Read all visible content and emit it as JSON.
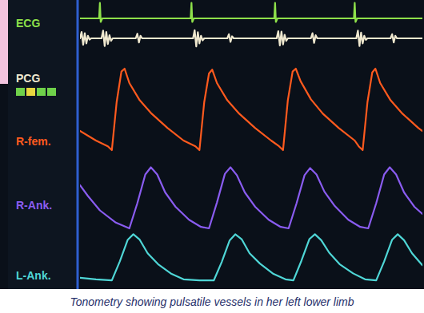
{
  "chart_data": [
    {
      "type": "line",
      "title": "ECG",
      "color": "#8ee04a",
      "tick_labels": false,
      "xlim": [
        0,
        430
      ],
      "ylim": [
        0,
        100
      ],
      "x": [
        0,
        24,
        25,
        26,
        28,
        139,
        140,
        141,
        143,
        244,
        245,
        246,
        248,
        344,
        345,
        346,
        348,
        430
      ],
      "values": [
        30,
        30,
        95,
        15,
        30,
        30,
        95,
        15,
        30,
        30,
        95,
        15,
        30,
        30,
        95,
        15,
        30,
        30
      ]
    },
    {
      "type": "line",
      "title": "PCG",
      "color": "#efe8cf",
      "tick_labels": false,
      "xlim": [
        0,
        430
      ],
      "ylim": [
        0,
        100
      ],
      "x": [
        0,
        2,
        4,
        6,
        8,
        10,
        12,
        14,
        27,
        29,
        31,
        33,
        35,
        37,
        39,
        41,
        70,
        72,
        74,
        76,
        78,
        142,
        144,
        146,
        148,
        150,
        152,
        154,
        156,
        185,
        187,
        189,
        191,
        193,
        247,
        249,
        251,
        253,
        255,
        257,
        259,
        261,
        290,
        292,
        294,
        296,
        298,
        347,
        349,
        351,
        353,
        355,
        357,
        359,
        361,
        390,
        392,
        394,
        396,
        398,
        430
      ],
      "values": [
        50,
        75,
        25,
        70,
        30,
        60,
        45,
        50,
        50,
        80,
        20,
        75,
        28,
        62,
        40,
        50,
        50,
        68,
        34,
        60,
        50,
        50,
        82,
        18,
        74,
        30,
        60,
        42,
        50,
        50,
        66,
        36,
        58,
        50,
        50,
        78,
        22,
        76,
        26,
        64,
        40,
        50,
        50,
        70,
        32,
        62,
        50,
        50,
        80,
        20,
        72,
        30,
        60,
        44,
        50,
        50,
        66,
        34,
        60,
        50,
        50
      ]
    },
    {
      "type": "line",
      "title": "R-fem.",
      "color": "#ff5a1e",
      "tick_labels": false,
      "xlim": [
        0,
        430
      ],
      "ylim": [
        0,
        100
      ],
      "x": [
        0,
        20,
        35,
        40,
        46,
        52,
        56,
        62,
        75,
        90,
        110,
        130,
        145,
        150,
        156,
        162,
        166,
        172,
        185,
        200,
        220,
        240,
        250,
        255,
        261,
        267,
        271,
        277,
        290,
        305,
        325,
        345,
        350,
        355,
        361,
        367,
        371,
        377,
        390,
        405,
        425,
        430
      ],
      "values": [
        30,
        20,
        14,
        10,
        60,
        92,
        95,
        80,
        62,
        48,
        33,
        20,
        14,
        10,
        60,
        90,
        94,
        80,
        62,
        48,
        33,
        20,
        14,
        10,
        62,
        92,
        95,
        82,
        63,
        48,
        33,
        20,
        14,
        10,
        60,
        91,
        95,
        80,
        62,
        48,
        33,
        30
      ]
    },
    {
      "type": "line",
      "title": "R-Ank.",
      "color": "#8a5cf0",
      "tick_labels": false,
      "xlim": [
        0,
        430
      ],
      "ylim": [
        0,
        100
      ],
      "x": [
        0,
        10,
        25,
        45,
        62,
        72,
        82,
        89,
        97,
        107,
        120,
        137,
        152,
        162,
        172,
        182,
        189,
        197,
        207,
        220,
        237,
        252,
        262,
        272,
        282,
        289,
        297,
        307,
        320,
        337,
        352,
        362,
        372,
        382,
        389,
        397,
        407,
        420,
        430
      ],
      "values": [
        70,
        55,
        35,
        18,
        10,
        45,
        85,
        95,
        85,
        60,
        40,
        22,
        12,
        10,
        46,
        86,
        95,
        84,
        60,
        40,
        22,
        12,
        10,
        45,
        84,
        94,
        85,
        61,
        41,
        22,
        12,
        10,
        45,
        85,
        95,
        85,
        60,
        40,
        30
      ]
    },
    {
      "type": "line",
      "title": "L-Ank.",
      "color": "#4fd6d6",
      "tick_labels": false,
      "xlim": [
        0,
        430
      ],
      "ylim": [
        0,
        100
      ],
      "x": [
        0,
        20,
        40,
        50,
        60,
        67,
        75,
        85,
        98,
        115,
        130,
        150,
        168,
        178,
        188,
        195,
        203,
        213,
        226,
        243,
        258,
        268,
        278,
        288,
        295,
        303,
        313,
        326,
        343,
        358,
        372,
        382,
        392,
        399,
        407,
        417,
        430
      ],
      "values": [
        15,
        12,
        10,
        45,
        85,
        95,
        85,
        60,
        40,
        22,
        12,
        10,
        10,
        44,
        84,
        95,
        86,
        60,
        41,
        22,
        12,
        10,
        46,
        86,
        95,
        84,
        61,
        40,
        23,
        12,
        10,
        45,
        85,
        95,
        84,
        60,
        38
      ]
    }
  ],
  "caption": "Tonometry showing pulsatile vessels in her left lower limb"
}
